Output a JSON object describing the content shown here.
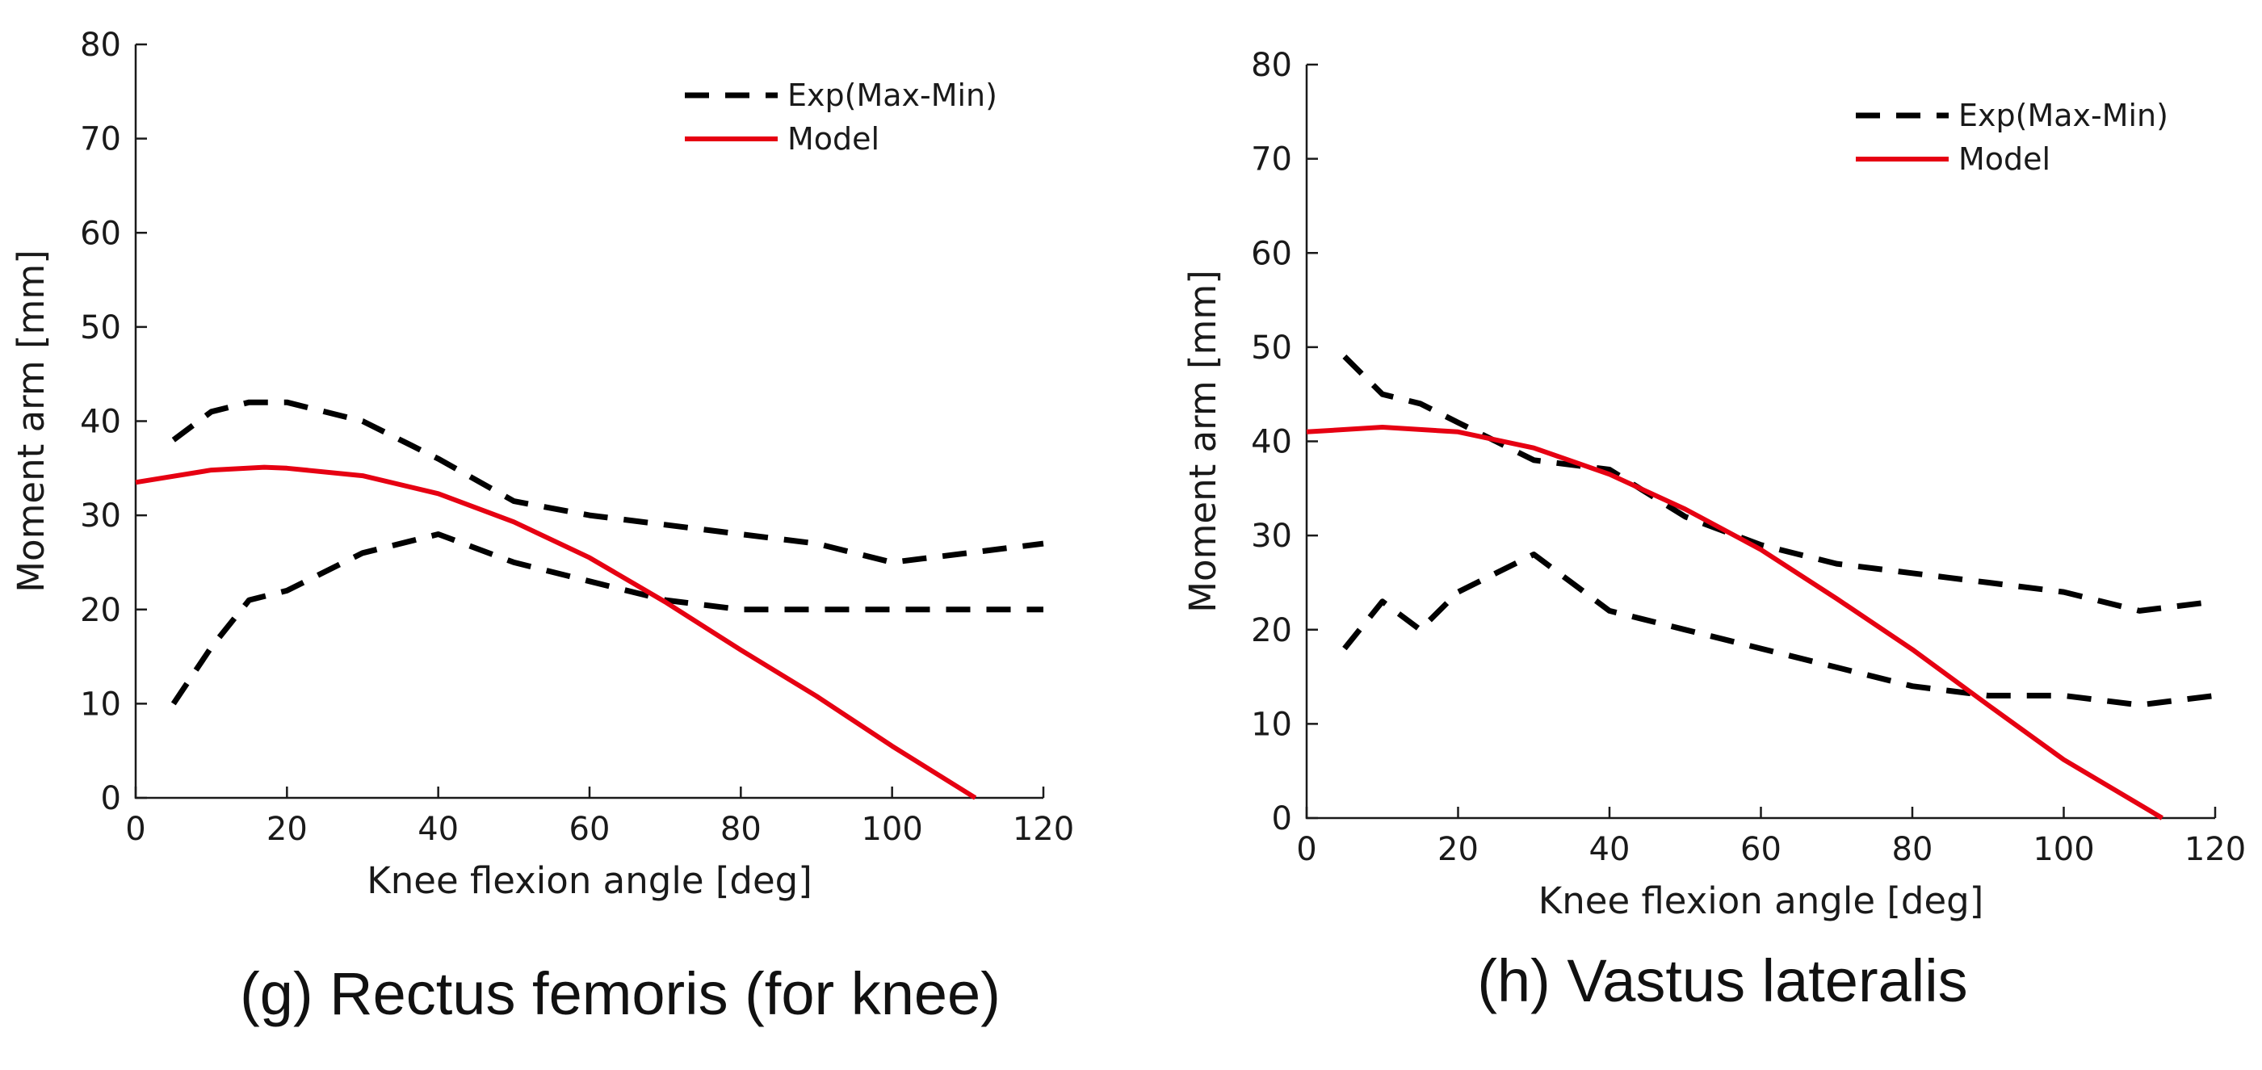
{
  "chart_data": [
    {
      "type": "line",
      "caption": "(g) Rectus femoris (for knee)",
      "title": "",
      "xlabel": "Knee flexion angle [deg]",
      "ylabel": "Moment arm [mm]",
      "xlim": [
        0,
        120
      ],
      "ylim": [
        0,
        80
      ],
      "xticks": [
        "0",
        "20",
        "40",
        "60",
        "80",
        "100",
        "120"
      ],
      "yticks": [
        "0",
        "10",
        "20",
        "30",
        "40",
        "50",
        "60",
        "70",
        "80"
      ],
      "legend_position": "top-right",
      "series": [
        {
          "name": "Exp(Max-Min)",
          "style": "dashed",
          "color": "#000000",
          "show_in_legend": true,
          "x": [
            5,
            10,
            15,
            20,
            30,
            40,
            50,
            60,
            70,
            80,
            90,
            100,
            110,
            120
          ],
          "y": [
            38,
            41,
            42,
            42,
            40,
            36,
            31.5,
            30,
            29,
            28,
            27,
            25,
            26,
            27
          ]
        },
        {
          "name": "Exp(Max-Min) lower",
          "style": "dashed",
          "color": "#000000",
          "show_in_legend": false,
          "x": [
            5,
            10,
            15,
            20,
            30,
            40,
            50,
            60,
            70,
            80,
            90,
            100,
            110,
            120
          ],
          "y": [
            10,
            16,
            21,
            22,
            26,
            28,
            25,
            23,
            21,
            20,
            20,
            20,
            20,
            20
          ]
        },
        {
          "name": "Model",
          "style": "solid",
          "color": "#e60012",
          "show_in_legend": true,
          "x": [
            0,
            10,
            17,
            20,
            30,
            40,
            50,
            60,
            70,
            80,
            90,
            100,
            111
          ],
          "y": [
            33.5,
            34.8,
            35.1,
            35.0,
            34.2,
            32.3,
            29.3,
            25.5,
            20.8,
            15.7,
            10.8,
            5.5,
            0
          ]
        }
      ]
    },
    {
      "type": "line",
      "caption": "(h) Vastus lateralis",
      "title": "",
      "xlabel": "Knee flexion angle [deg]",
      "ylabel": "Moment arm [mm]",
      "xlim": [
        0,
        120
      ],
      "ylim": [
        0,
        80
      ],
      "xticks": [
        "0",
        "20",
        "40",
        "60",
        "80",
        "100",
        "120"
      ],
      "yticks": [
        "0",
        "10",
        "20",
        "30",
        "40",
        "50",
        "60",
        "70",
        "80"
      ],
      "legend_position": "top-right",
      "series": [
        {
          "name": "Exp(Max-Min)",
          "style": "dashed",
          "color": "#000000",
          "show_in_legend": true,
          "x": [
            5,
            10,
            15,
            20,
            30,
            40,
            50,
            60,
            70,
            80,
            90,
            100,
            110,
            120
          ],
          "y": [
            49,
            45,
            44,
            42,
            38,
            37,
            32,
            29,
            27,
            26,
            25,
            24,
            22,
            23
          ]
        },
        {
          "name": "Exp(Max-Min) lower",
          "style": "dashed",
          "color": "#000000",
          "show_in_legend": false,
          "x": [
            5,
            10,
            15,
            20,
            25,
            30,
            40,
            50,
            60,
            70,
            80,
            90,
            100,
            110,
            120
          ],
          "y": [
            18,
            23,
            20,
            24,
            26,
            28,
            22,
            20,
            18,
            16,
            14,
            13,
            13,
            12,
            13
          ]
        },
        {
          "name": "Model",
          "style": "solid",
          "color": "#e60012",
          "show_in_legend": true,
          "x": [
            0,
            10,
            20,
            30,
            40,
            50,
            60,
            70,
            80,
            90,
            100,
            113
          ],
          "y": [
            41,
            41.5,
            41.0,
            39.3,
            36.5,
            32.8,
            28.5,
            23.3,
            17.9,
            12.0,
            6.2,
            0
          ]
        }
      ]
    }
  ]
}
